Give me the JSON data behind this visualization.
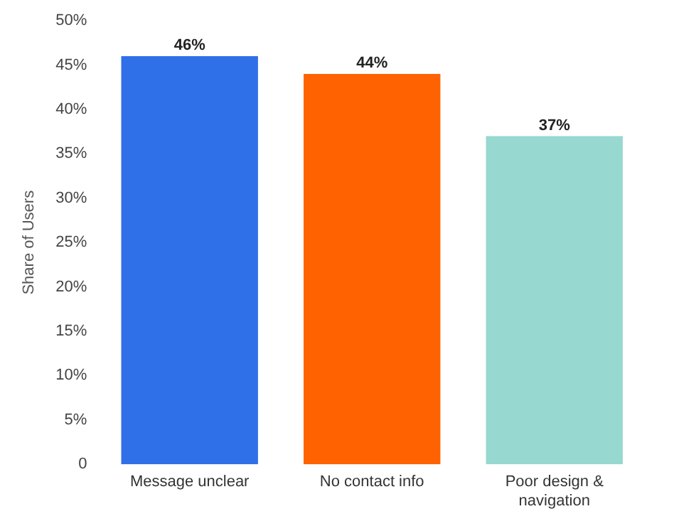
{
  "chart_data": {
    "type": "bar",
    "ylabel": "Share of Users",
    "categories": [
      "Message unclear",
      "No contact info",
      "Poor design & navigation"
    ],
    "values": [
      46,
      44,
      37
    ],
    "colors": [
      "#2f6fe8",
      "#ff6200",
      "#97d8d0"
    ],
    "value_labels": [
      "46%",
      "44%",
      "37%"
    ],
    "ylim": [
      0,
      50
    ],
    "yticks": [
      0,
      {
        "value": 5,
        "label": "5%"
      },
      {
        "value": 10,
        "label": "10%"
      },
      {
        "value": 15,
        "label": "15%"
      },
      {
        "value": 20,
        "label": "20%"
      },
      {
        "value": 25,
        "label": "25%"
      },
      {
        "value": 30,
        "label": "30%"
      },
      {
        "value": 35,
        "label": "35%"
      },
      {
        "value": 40,
        "label": "40%"
      },
      {
        "value": 45,
        "label": "45%"
      },
      {
        "value": 50,
        "label": "50%"
      }
    ],
    "grid": false,
    "legend": false
  }
}
